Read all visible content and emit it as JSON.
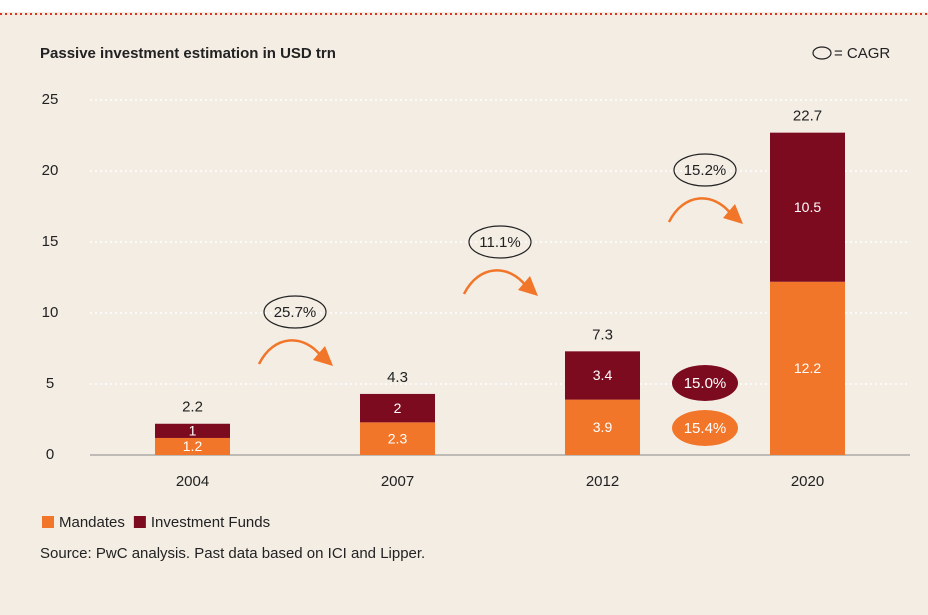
{
  "chart_data": {
    "type": "bar",
    "stacked": true,
    "title": "Passive investment estimation in USD trn",
    "cagr_legend": "= CAGR",
    "categories": [
      "2004",
      "2007",
      "2012",
      "2020"
    ],
    "series": [
      {
        "name": "Mandates",
        "color": "#f2762a",
        "values": [
          1.2,
          2.3,
          3.9,
          12.2
        ],
        "cagr_label": "15.4%"
      },
      {
        "name": "Investment Funds",
        "color": "#7d0b1f",
        "values": [
          1.0,
          2.0,
          3.4,
          10.5
        ],
        "cagr_label": "15.0%"
      }
    ],
    "totals": [
      2.2,
      4.3,
      7.3,
      22.7
    ],
    "cagr_labels": [
      "25.7%",
      "11.1%",
      "15.2%"
    ],
    "ylim": [
      0,
      25
    ],
    "yticks": [
      0,
      5,
      10,
      15,
      20,
      25
    ],
    "grid": true,
    "source": "Source: PwC analysis. Past data based on ICI and Lipper."
  }
}
